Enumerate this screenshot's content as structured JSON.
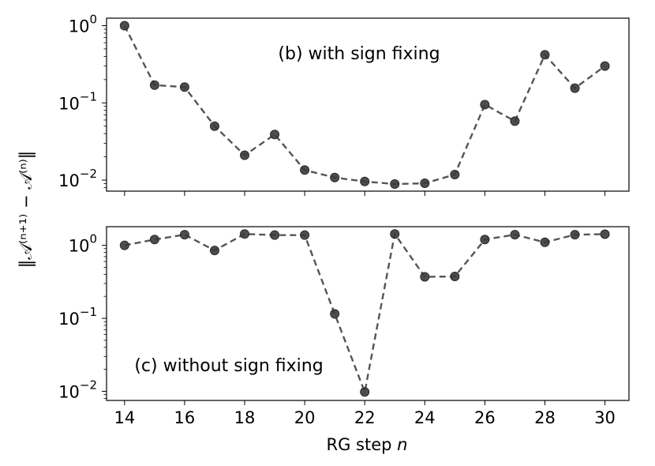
{
  "chart_data": [
    {
      "type": "line",
      "panel": "top",
      "annotation": "(b) with sign fixing",
      "x": [
        14,
        15,
        16,
        17,
        18,
        19,
        20,
        21,
        22,
        23,
        24,
        25,
        26,
        27,
        28,
        29,
        30
      ],
      "y": [
        1.0,
        0.17,
        0.16,
        0.05,
        0.021,
        0.039,
        0.0135,
        0.0108,
        0.0096,
        0.0089,
        0.0091,
        0.0118,
        0.095,
        0.058,
        0.42,
        0.155,
        0.3
      ],
      "xlim": [
        13.4,
        30.8
      ],
      "ylim": [
        0.0072,
        1.25
      ],
      "yscale": "log",
      "yticks": [
        {
          "value": 1,
          "base": "10",
          "exp": "0"
        },
        {
          "value": 0.1,
          "base": "10",
          "exp": "−1"
        },
        {
          "value": 0.01,
          "base": "10",
          "exp": "−2"
        }
      ],
      "show_xtick_labels": false,
      "line_style": "dashed",
      "line_color": "#555555",
      "marker_color": "#3a3a3a"
    },
    {
      "type": "line",
      "panel": "bottom",
      "annotation": "(c) without sign fixing",
      "x": [
        14,
        15,
        16,
        17,
        18,
        19,
        20,
        21,
        22,
        23,
        24,
        25,
        26,
        27,
        28,
        29,
        30
      ],
      "y": [
        1.0,
        1.2,
        1.4,
        0.85,
        1.43,
        1.38,
        1.38,
        0.115,
        0.0098,
        1.43,
        0.37,
        0.375,
        1.2,
        1.4,
        1.1,
        1.4,
        1.42
      ],
      "xlim": [
        13.4,
        30.8
      ],
      "ylim": [
        0.0075,
        1.8
      ],
      "yscale": "log",
      "yticks": [
        {
          "value": 1,
          "base": "10",
          "exp": "0"
        },
        {
          "value": 0.1,
          "base": "10",
          "exp": "−1"
        },
        {
          "value": 0.01,
          "base": "10",
          "exp": "−2"
        }
      ],
      "xticks": [
        "14",
        "16",
        "18",
        "20",
        "22",
        "24",
        "26",
        "28",
        "30"
      ],
      "xtick_values": [
        14,
        16,
        18,
        20,
        22,
        24,
        26,
        28,
        30
      ],
      "line_style": "dashed",
      "line_color": "#555555",
      "marker_color": "#3a3a3a"
    }
  ],
  "labels": {
    "xlabel_text": "RG step ",
    "xlabel_var": "n",
    "ylabel": "‖𝒜⁽ⁿ⁺¹⁾ − 𝒜⁽ⁿ⁾‖"
  }
}
